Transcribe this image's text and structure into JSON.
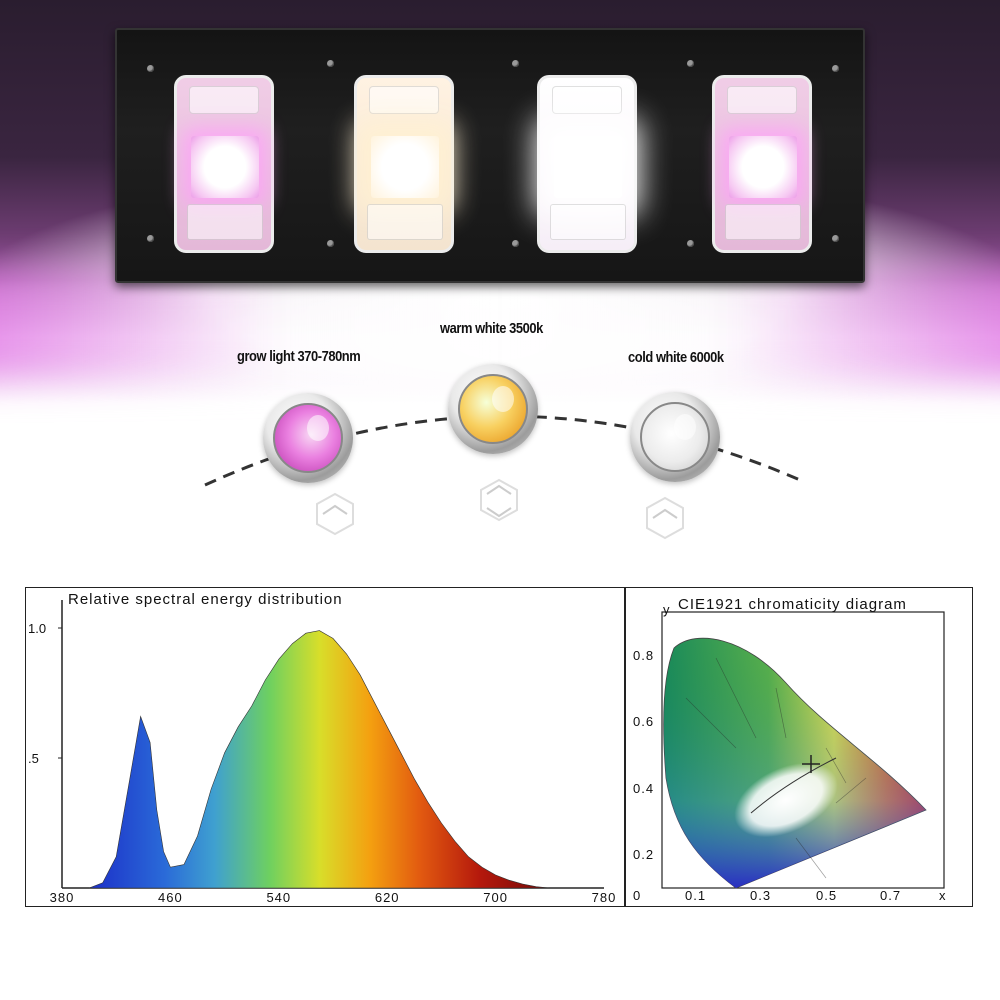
{
  "labels": {
    "grow": "grow light 370-780nm",
    "warm": "warm white 3500k",
    "cold": "cold white 6000k"
  },
  "bulb_colors": {
    "grow": "#e06ad6",
    "warm": "#f5b64a",
    "cold": "#eeeeee"
  },
  "spectrum": {
    "title": "Relative spectral energy distribution"
  },
  "cie": {
    "title": "CIE1921 chromaticity diagram",
    "y_axis_label": "y",
    "x_axis_label": "x",
    "origin_label": "0",
    "y_ticks": [
      "0.8",
      "0.6",
      "0.4",
      "0.2"
    ],
    "x_ticks": [
      "0.1",
      "0.3",
      "0.5",
      "0.7"
    ]
  },
  "chart_data": {
    "type": "area",
    "title": "Relative spectral energy distribution",
    "xlabel": "",
    "ylabel": "",
    "xlim": [
      380,
      780
    ],
    "ylim": [
      0,
      1.0
    ],
    "x_ticks": [
      380,
      460,
      540,
      620,
      700,
      780
    ],
    "y_ticks": [
      0.5,
      1.0
    ],
    "x_tick_labels": [
      "380",
      "460",
      "540",
      "620",
      "700",
      "780"
    ],
    "y_tick_labels": [
      ".5",
      "1.0"
    ],
    "grid": false,
    "x": [
      400,
      410,
      420,
      430,
      438,
      445,
      450,
      455,
      460,
      470,
      480,
      490,
      500,
      510,
      520,
      530,
      540,
      550,
      560,
      570,
      580,
      590,
      600,
      610,
      620,
      630,
      640,
      650,
      660,
      670,
      680,
      690,
      700,
      710,
      720,
      730,
      740,
      750,
      760,
      770
    ],
    "y": [
      0.0,
      0.02,
      0.12,
      0.42,
      0.66,
      0.56,
      0.3,
      0.14,
      0.08,
      0.09,
      0.2,
      0.38,
      0.52,
      0.62,
      0.7,
      0.8,
      0.88,
      0.94,
      0.98,
      0.99,
      0.96,
      0.9,
      0.82,
      0.72,
      0.62,
      0.52,
      0.42,
      0.33,
      0.25,
      0.18,
      0.12,
      0.08,
      0.05,
      0.03,
      0.015,
      0.005,
      0.0,
      0.0,
      0.0,
      0.0
    ]
  }
}
